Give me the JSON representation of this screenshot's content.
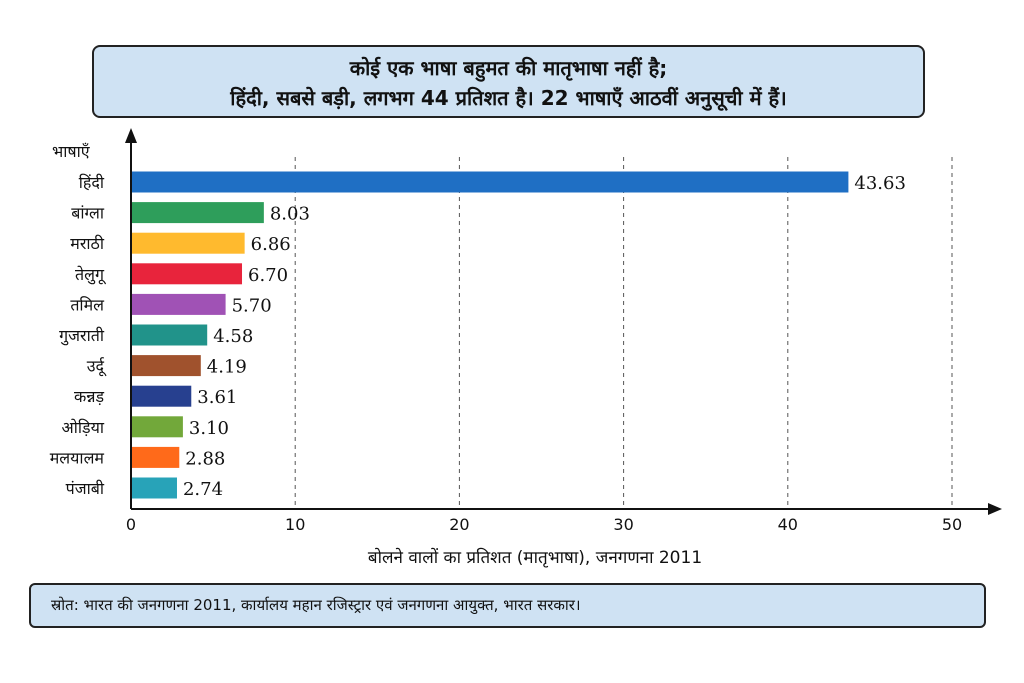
{
  "header": {
    "title_line1": "कोई एक भाषा बहुमत की मातृभाषा नहीं है;",
    "title_line2": "हिंदी, सबसे बड़ी, लगभग 44 प्रतिशत है। 22 भाषाएँ आठवीं अनुसूची में हैं।"
  },
  "source": "स्रोत: भारत की जनगणना 2011, कार्यालय महान रजिस्ट्रार एवं जनगणना आयुक्त, भारत सरकार।",
  "chart_data": {
    "type": "bar",
    "orientation": "horizontal",
    "ylabel": "भाषाएँ",
    "xlabel": "बोलने वालों का प्रतिशत (मातृभाषा), जनगणना 2011",
    "xlim": [
      0,
      50
    ],
    "xticks": [
      0,
      10,
      20,
      30,
      40,
      50
    ],
    "grid": "vertical dashed",
    "categories": [
      "हिंदी",
      "बांग्ला",
      "मराठी",
      "तेलुगू",
      "तमिल",
      "गुजराती",
      "उर्दू",
      "कन्नड़",
      "ओड़िया",
      "मलयालम",
      "पंजाबी"
    ],
    "values": [
      43.63,
      8.03,
      6.86,
      6.7,
      5.7,
      4.58,
      4.19,
      3.61,
      3.1,
      2.88,
      2.74
    ],
    "value_labels": [
      "43.63",
      "8.03",
      "6.86",
      "6.70",
      "5.70",
      "4.58",
      "4.19",
      "3.61",
      "3.10",
      "2.88",
      "2.74"
    ],
    "colors": [
      "#1f6fc4",
      "#2e9e5b",
      "#ffba2e",
      "#e8243c",
      "#a052b5",
      "#21938a",
      "#a0522d",
      "#27408f",
      "#72a83a",
      "#ff6a1a",
      "#28a3b8"
    ]
  }
}
